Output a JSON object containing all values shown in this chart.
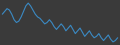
{
  "y": [
    5,
    7,
    9,
    8,
    5,
    1,
    -1,
    0,
    3,
    7,
    11,
    13,
    11,
    8,
    5,
    3,
    2,
    0,
    -2,
    -1,
    1,
    -1,
    -4,
    -6,
    -4,
    -2,
    -4,
    -7,
    -5,
    -3,
    -6,
    -9,
    -7,
    -5,
    -8,
    -11,
    -9,
    -7,
    -10,
    -12,
    -11,
    -9,
    -12,
    -14,
    -12,
    -10,
    -13,
    -15,
    -14,
    -12
  ],
  "line_color": "#3a8ac4",
  "line_width": 0.8,
  "background_color": "#3a3a3a"
}
